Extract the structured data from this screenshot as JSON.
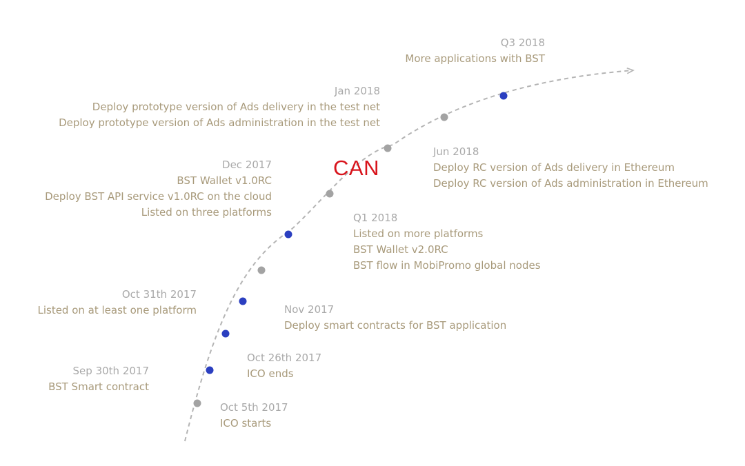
{
  "colors": {
    "curve": "#b4b4b4",
    "dot_done": "#a3a3a3",
    "dot_milestone": "#2b3fc0",
    "date_text": "#a9a9a9",
    "body_text": "#a89a7b",
    "can_label": "#d8141c"
  },
  "center_label": "CAN",
  "milestones": [
    {
      "date": "Oct 5th 2017",
      "lines": [
        "ICO starts"
      ],
      "marker": "gray"
    },
    {
      "date": "Sep 30th 2017",
      "lines": [
        "BST Smart contract"
      ],
      "marker": "blue"
    },
    {
      "date": "Oct 26th 2017",
      "lines": [
        "ICO ends"
      ],
      "marker": "blue"
    },
    {
      "date": "Oct 31th 2017",
      "lines": [
        "Listed on at least one platform"
      ],
      "marker": "blue"
    },
    {
      "date": "Nov 2017",
      "lines": [
        "Deploy smart contracts for BST application"
      ],
      "marker": "gray"
    },
    {
      "date": "Dec 2017",
      "lines": [
        "BST Wallet v1.0RC",
        "Deploy BST API service v1.0RC on the cloud",
        "Listed on three platforms"
      ],
      "marker": "blue"
    },
    {
      "date": "Q1 2018",
      "lines": [
        "Listed on more platforms",
        "BST Wallet v2.0RC",
        "BST flow in MobiPromo global nodes"
      ],
      "marker": "gray"
    },
    {
      "date": "Jan 2018",
      "lines": [
        "Deploy prototype version of Ads delivery in the test net",
        "Deploy prototype version of Ads administration in the test net"
      ],
      "marker": "gray"
    },
    {
      "date": "Jun 2018",
      "lines": [
        "Deploy RC version of Ads delivery in Ethereum",
        "Deploy RC version of Ads administration in Ethereum"
      ],
      "marker": "gray"
    },
    {
      "date": "Q3 2018",
      "lines": [
        "More applications with BST"
      ],
      "marker": "blue"
    }
  ]
}
